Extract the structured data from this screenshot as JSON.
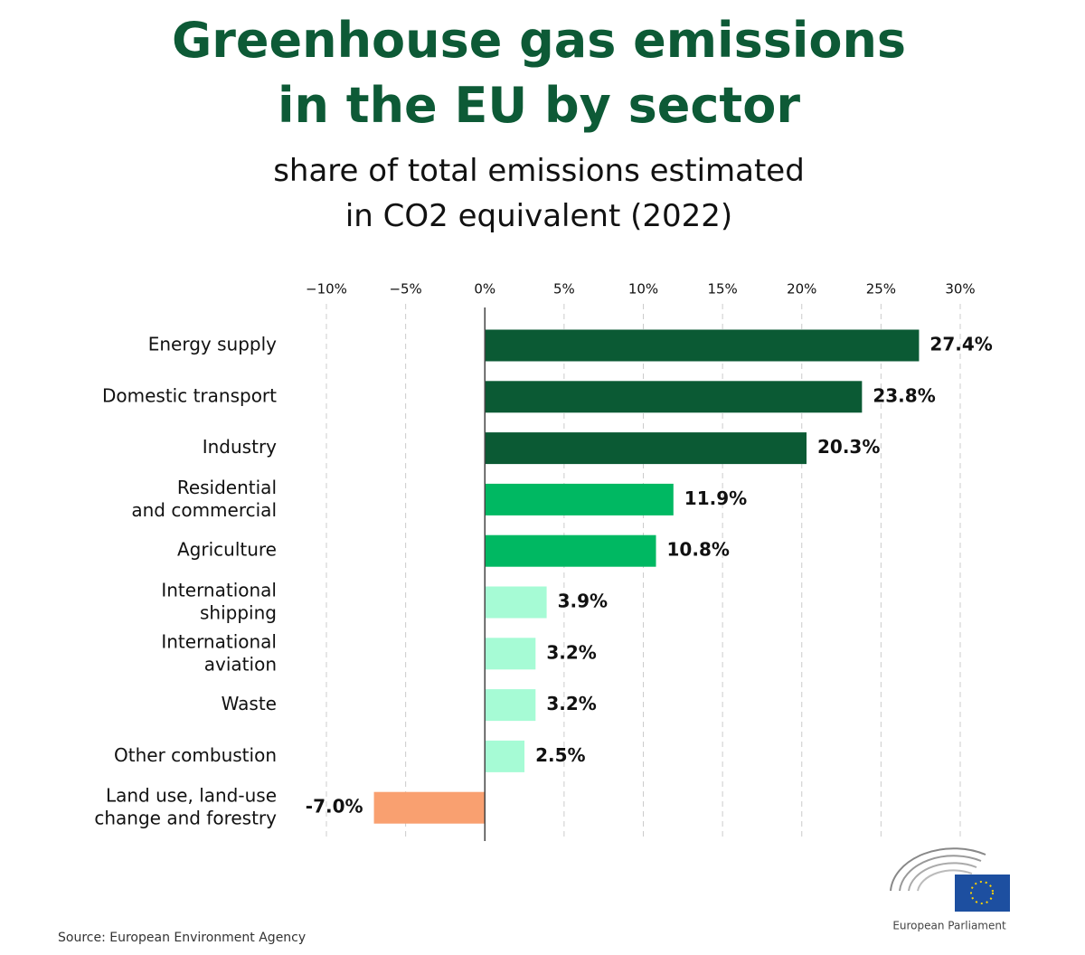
{
  "chart_data": {
    "type": "hbar",
    "title": "Greenhouse gas emissions\nin the EU by sector",
    "subtitle": "share of total emissions estimated\nin CO2 equivalent (2022)",
    "categories": [
      "Energy supply",
      "Domestic transport",
      "Industry",
      "Residential\nand commercial",
      "Agriculture",
      "International\nshipping",
      "International\naviation",
      "Waste",
      "Other combustion",
      "Land use, land-use\nchange and forestry"
    ],
    "values": [
      27.4,
      23.8,
      20.3,
      11.9,
      10.8,
      3.9,
      3.2,
      3.2,
      2.5,
      -7.0
    ],
    "value_labels": [
      "27.4%",
      "23.8%",
      "20.3%",
      "11.9%",
      "10.8%",
      "3.9%",
      "3.2%",
      "3.2%",
      "2.5%",
      "-7.0%"
    ],
    "colors": [
      "#0b5a34",
      "#0b5a34",
      "#0b5a34",
      "#00b862",
      "#00b862",
      "#a6fbd5",
      "#a6fbd5",
      "#a6fbd5",
      "#a6fbd5",
      "#f9a070"
    ],
    "xlim": [
      -10,
      30
    ],
    "xticks": [
      {
        "value": -10,
        "label": "−10%"
      },
      {
        "value": -5,
        "label": "−5%"
      },
      {
        "value": 0,
        "label": "0%"
      },
      {
        "value": 5,
        "label": "5%"
      },
      {
        "value": 10,
        "label": "10%"
      },
      {
        "value": 15,
        "label": "15%"
      },
      {
        "value": 20,
        "label": "20%"
      },
      {
        "value": 25,
        "label": "25%"
      },
      {
        "value": 30,
        "label": "30%"
      }
    ],
    "grid": true,
    "source": "Source: European Environment Agency",
    "logo_text": "European Parliament"
  }
}
